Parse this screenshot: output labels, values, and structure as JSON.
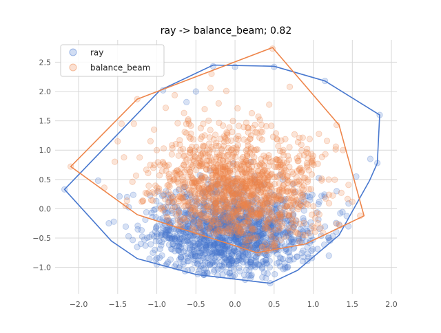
{
  "chart_data": {
    "type": "scatter",
    "title": "ray -> balance_beam; 0.82",
    "xlabel": "",
    "ylabel": "",
    "xlim": [
      -2.3,
      2.07
    ],
    "ylim": [
      -1.45,
      2.88
    ],
    "xticks": [
      -2.0,
      -1.5,
      -1.0,
      -0.5,
      0.0,
      0.5,
      1.0,
      1.5,
      2.0
    ],
    "xtick_labels": [
      "−2.0",
      "−1.5",
      "−1.0",
      "−0.5",
      "0.0",
      "0.5",
      "1.0",
      "1.5",
      "2.0"
    ],
    "yticks": [
      -1.0,
      -0.5,
      0.0,
      0.5,
      1.0,
      1.5,
      2.0,
      2.5
    ],
    "ytick_labels": [
      "−1.0",
      "−0.5",
      "0.0",
      "0.5",
      "1.0",
      "1.5",
      "2.0",
      "2.5"
    ],
    "grid": true,
    "legend": "upper-left",
    "series": [
      {
        "name": "ray",
        "color": "#4878cf",
        "cloud": {
          "n": 1400,
          "cx": -0.05,
          "cy": -0.45,
          "sx": 0.55,
          "sy": 0.4,
          "seed": 7
        },
        "sample_points": [
          [
            -2.18,
            0.33
          ],
          [
            -1.75,
            0.48
          ],
          [
            -1.55,
            -0.22
          ],
          [
            -1.38,
            0.2
          ],
          [
            -1.05,
            -0.75
          ],
          [
            -0.92,
            2.02
          ],
          [
            -0.62,
            1.82
          ],
          [
            -0.5,
            2.0
          ],
          [
            -0.28,
            2.43
          ],
          [
            0.0,
            2.42
          ],
          [
            0.5,
            2.42
          ],
          [
            1.15,
            2.18
          ],
          [
            1.85,
            1.6
          ],
          [
            1.82,
            0.78
          ],
          [
            1.73,
            0.85
          ],
          [
            1.55,
            0.55
          ],
          [
            1.45,
            -0.3
          ],
          [
            1.2,
            -0.8
          ],
          [
            0.45,
            -1.27
          ],
          [
            -0.4,
            -1.12
          ],
          [
            -1.0,
            -0.95
          ],
          [
            0.2,
            0.8
          ],
          [
            0.6,
            -0.1
          ],
          [
            -0.8,
            0.1
          ],
          [
            1.3,
            0.3
          ]
        ],
        "hull": [
          [
            -2.18,
            0.33
          ],
          [
            -1.58,
            -0.55
          ],
          [
            -1.25,
            -0.85
          ],
          [
            -0.5,
            -1.12
          ],
          [
            0.0,
            -1.2
          ],
          [
            0.45,
            -1.27
          ],
          [
            0.8,
            -1.05
          ],
          [
            1.33,
            -0.45
          ],
          [
            1.72,
            0.48
          ],
          [
            1.82,
            0.78
          ],
          [
            1.85,
            1.6
          ],
          [
            1.15,
            2.18
          ],
          [
            0.5,
            2.43
          ],
          [
            -0.28,
            2.45
          ],
          [
            -0.96,
            2.02
          ]
        ]
      },
      {
        "name": "balance_beam",
        "color": "#ee854a",
        "cloud": {
          "n": 1300,
          "cx": 0.05,
          "cy": 0.35,
          "sx": 0.55,
          "sy": 0.5,
          "seed": 13
        },
        "sample_points": [
          [
            -2.1,
            0.72
          ],
          [
            -1.45,
            1.45
          ],
          [
            -1.25,
            1.87
          ],
          [
            -1.5,
            1.15
          ],
          [
            -0.3,
            2.3
          ],
          [
            0.48,
            2.73
          ],
          [
            0.7,
            2.08
          ],
          [
            1.3,
            1.43
          ],
          [
            1.38,
            1.0
          ],
          [
            1.6,
            -0.12
          ],
          [
            1.5,
            0.12
          ],
          [
            0.9,
            -0.45
          ],
          [
            0.3,
            -0.75
          ],
          [
            -0.5,
            -0.4
          ],
          [
            -0.8,
            0.2
          ],
          [
            0.1,
            0.6
          ],
          [
            0.4,
            -0.2
          ],
          [
            1.0,
            0.9
          ],
          [
            -1.0,
            1.0
          ],
          [
            -0.6,
            1.5
          ]
        ],
        "hull": [
          [
            -2.1,
            0.72
          ],
          [
            -1.25,
            -0.1
          ],
          [
            0.28,
            -0.75
          ],
          [
            0.9,
            -0.6
          ],
          [
            1.65,
            -0.12
          ],
          [
            1.33,
            1.43
          ],
          [
            0.48,
            2.75
          ],
          [
            -1.25,
            1.87
          ]
        ]
      }
    ]
  }
}
